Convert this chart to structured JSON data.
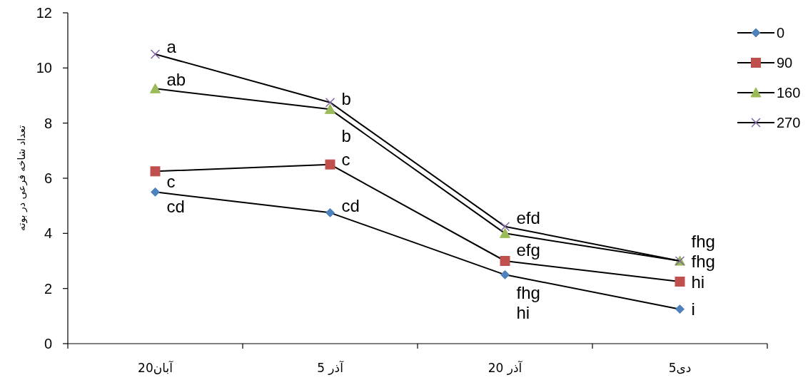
{
  "chart_data": {
    "type": "line",
    "ylabel": "تعداد شاخه فرعی در بوته",
    "categories": [
      "20آبان",
      "5 آذر",
      "20 آذر",
      "5دی"
    ],
    "ylim": [
      0,
      12
    ],
    "yticks": [
      0,
      2,
      4,
      6,
      8,
      10,
      12
    ],
    "legend": "top right",
    "series": [
      {
        "name": "0",
        "color": "#4f81bd",
        "marker": "diamond",
        "values": [
          5.5,
          4.75,
          2.5,
          1.25
        ]
      },
      {
        "name": "90",
        "color": "#c0504d",
        "marker": "square",
        "values": [
          6.25,
          6.5,
          3,
          2.25
        ]
      },
      {
        "name": "160",
        "color": "#9bbb59",
        "marker": "triangle",
        "values": [
          9.25,
          8.5,
          4,
          3
        ]
      },
      {
        "name": "270",
        "color": "#8064a2",
        "marker": "cross",
        "values": [
          10.5,
          8.75,
          4.25,
          3
        ]
      }
    ],
    "annotations": [
      {
        "text": "cd",
        "x": "20آبان",
        "y": 5.5
      },
      {
        "text": "c",
        "x": "20آبان",
        "y": 6.25
      },
      {
        "text": "ab",
        "x": "20آبان",
        "y": 9.25
      },
      {
        "text": "a",
        "x": "20آبان",
        "y": 10.5
      },
      {
        "text": "cd",
        "x": "5 آذر",
        "y": 4.75
      },
      {
        "text": "c",
        "x": "5 آذر",
        "y": 6.5
      },
      {
        "text": "b",
        "x": "5 آذر",
        "y": 8.5
      },
      {
        "text": "b",
        "x": "5 آذر",
        "y": 8.75
      },
      {
        "text": "hi",
        "x": "20 آذر",
        "y": 2.5
      },
      {
        "text": "fhg",
        "x": "20 آذر",
        "y": 3
      },
      {
        "text": "efg",
        "x": "20 آذر",
        "y": 4
      },
      {
        "text": "efd",
        "x": "20 آذر",
        "y": 4.25
      },
      {
        "text": "i",
        "x": "5دی",
        "y": 1.25
      },
      {
        "text": "hi",
        "x": "5دی",
        "y": 2.25
      },
      {
        "text": "fhg",
        "x": "5دی",
        "y": 3
      },
      {
        "text": "fhg",
        "x": "5دی",
        "y": 3
      }
    ]
  }
}
